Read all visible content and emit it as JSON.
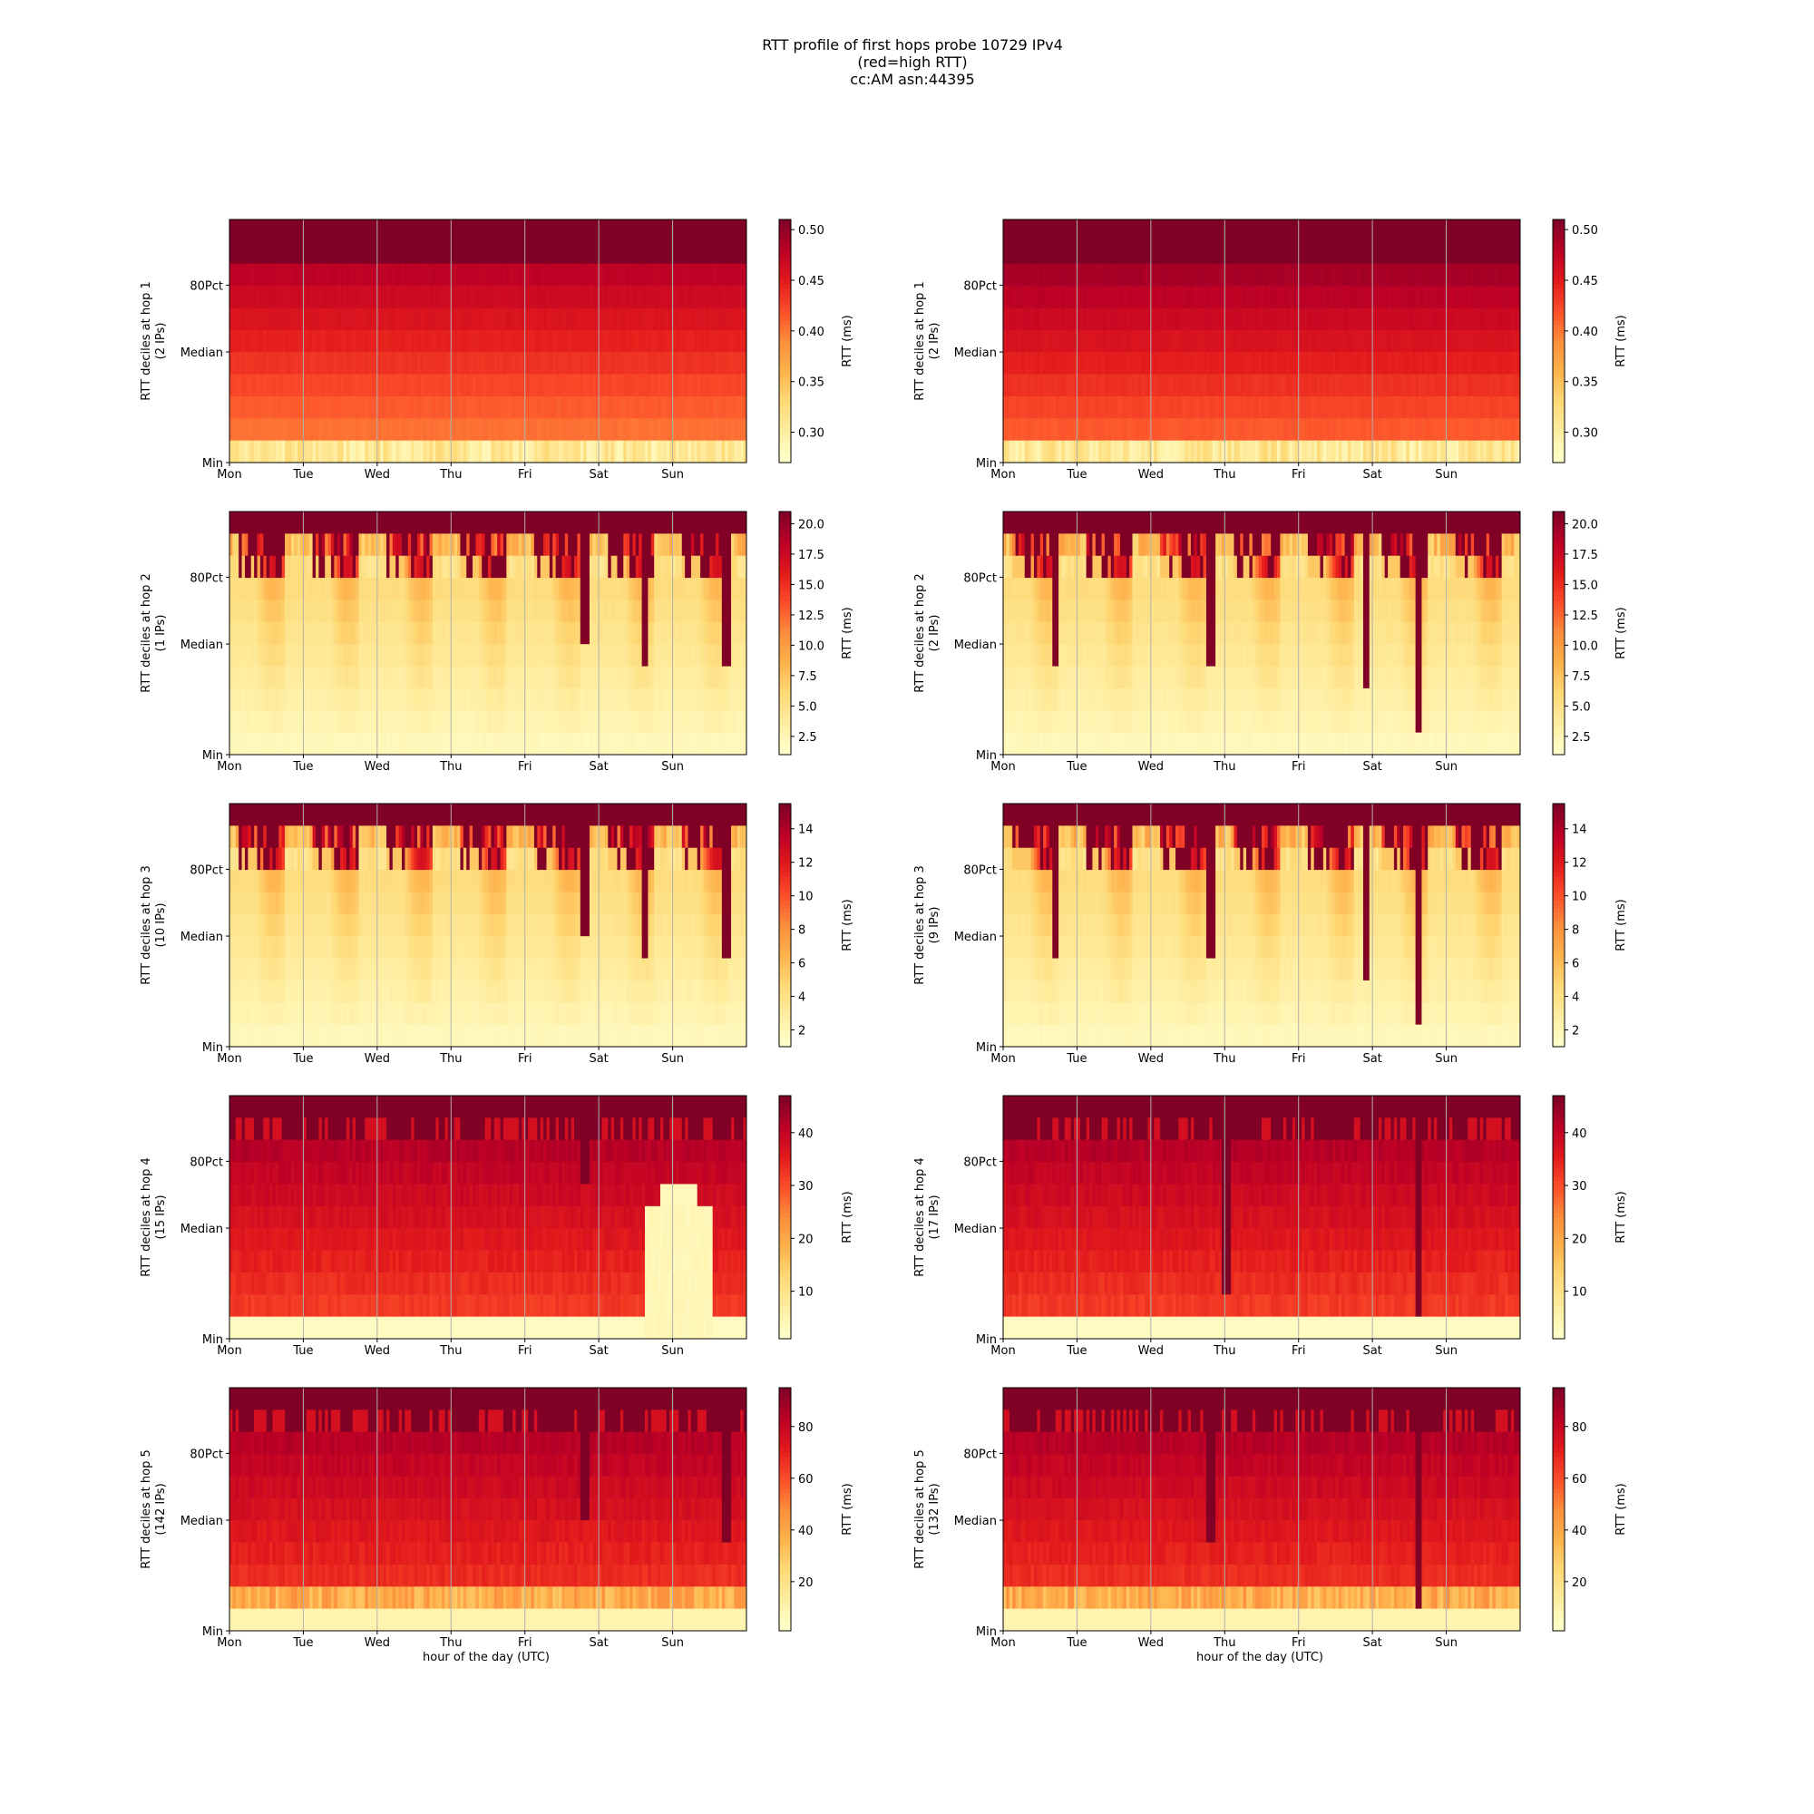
{
  "figure": {
    "title_lines": [
      "RTT profile of first hops probe 10729 IPv4",
      "(red=high RTT)",
      "cc:AM asn:44395"
    ],
    "xlabel": "hour of the day (UTC)",
    "colorbar_label": "RTT (ms)",
    "y_tick_labels": [
      "Min",
      "Median",
      "80Pct"
    ],
    "day_labels": [
      "Mon",
      "Tue",
      "Wed",
      "Thu",
      "Fri",
      "Sat",
      "Sun"
    ],
    "colormap": [
      "#ffffcc",
      "#ffeda0",
      "#fed976",
      "#feb24c",
      "#fd8d3c",
      "#fc4e2a",
      "#e31a1c",
      "#bd0026",
      "#800026"
    ]
  },
  "chart_data": [
    {
      "type": "heatmap",
      "ylabel": "RTT deciles at hop 1",
      "ip_label": "(2 IPs)",
      "vmin": 0.27,
      "vmax": 0.51,
      "cbar_ticks": [
        "0.30",
        "0.35",
        "0.40",
        "0.45",
        "0.50"
      ],
      "profile": "flat-low",
      "spikes": [],
      "anomalies": []
    },
    {
      "type": "heatmap",
      "ylabel": "RTT deciles at hop 1",
      "ip_label": "(2 IPs)",
      "vmin": 0.27,
      "vmax": 0.51,
      "cbar_ticks": [
        "0.30",
        "0.35",
        "0.40",
        "0.45",
        "0.50"
      ],
      "profile": "flat-high",
      "spikes": [],
      "anomalies": []
    },
    {
      "type": "heatmap",
      "ylabel": "RTT deciles at hop 2",
      "ip_label": "(1 IPs)",
      "vmin": 1,
      "vmax": 21,
      "cbar_ticks": [
        "2.5",
        "5.0",
        "7.5",
        "10.0",
        "12.5",
        "15.0",
        "17.5",
        "20.0"
      ],
      "profile": "diurnal",
      "spikes": [
        [
          4.8,
          5
        ],
        [
          5.6,
          4
        ],
        [
          6.7,
          4
        ]
      ],
      "anomalies": []
    },
    {
      "type": "heatmap",
      "ylabel": "RTT deciles at hop 2",
      "ip_label": "(2 IPs)",
      "vmin": 1,
      "vmax": 21,
      "cbar_ticks": [
        "2.5",
        "5.0",
        "7.5",
        "10.0",
        "12.5",
        "15.0",
        "17.5",
        "20.0"
      ],
      "profile": "diurnal",
      "spikes": [
        [
          0.7,
          4
        ],
        [
          2.8,
          4
        ],
        [
          4.9,
          3
        ],
        [
          5.6,
          1
        ]
      ],
      "anomalies": []
    },
    {
      "type": "heatmap",
      "ylabel": "RTT deciles at hop 3",
      "ip_label": "(10 IPs)",
      "vmin": 1,
      "vmax": 15.5,
      "cbar_ticks": [
        "2",
        "4",
        "6",
        "8",
        "10",
        "12",
        "14"
      ],
      "profile": "diurnal",
      "spikes": [
        [
          4.8,
          5
        ],
        [
          5.6,
          4
        ],
        [
          6.7,
          4
        ]
      ],
      "anomalies": []
    },
    {
      "type": "heatmap",
      "ylabel": "RTT deciles at hop 3",
      "ip_label": "(9 IPs)",
      "vmin": 1,
      "vmax": 15.5,
      "cbar_ticks": [
        "2",
        "4",
        "6",
        "8",
        "10",
        "12",
        "14"
      ],
      "profile": "diurnal",
      "spikes": [
        [
          0.7,
          4
        ],
        [
          2.8,
          4
        ],
        [
          4.9,
          3
        ],
        [
          5.6,
          1
        ]
      ],
      "anomalies": []
    },
    {
      "type": "heatmap",
      "ylabel": "RTT deciles at hop 4",
      "ip_label": "(15 IPs)",
      "vmin": 1,
      "vmax": 47,
      "cbar_ticks": [
        "10",
        "20",
        "30",
        "40"
      ],
      "profile": "mid-red",
      "spikes": [
        [
          4.8,
          7
        ]
      ],
      "anomalies": [
        {
          "x0": 5.6,
          "x1": 6.5,
          "row_to": 5,
          "peak_row": 6
        }
      ]
    },
    {
      "type": "heatmap",
      "ylabel": "RTT deciles at hop 4",
      "ip_label": "(17 IPs)",
      "vmin": 1,
      "vmax": 47,
      "cbar_ticks": [
        "10",
        "20",
        "30",
        "40"
      ],
      "profile": "mid-red",
      "spikes": [
        [
          5.6,
          1
        ],
        [
          3.0,
          2
        ]
      ],
      "anomalies": []
    },
    {
      "type": "heatmap",
      "ylabel": "RTT deciles at hop 5",
      "ip_label": "(142 IPs)",
      "vmin": 1,
      "vmax": 95,
      "cbar_ticks": [
        "20",
        "40",
        "60",
        "80"
      ],
      "profile": "mid-red-band",
      "spikes": [
        [
          4.8,
          5
        ],
        [
          6.7,
          4
        ]
      ],
      "anomalies": []
    },
    {
      "type": "heatmap",
      "ylabel": "RTT deciles at hop 5",
      "ip_label": "(132 IPs)",
      "vmin": 1,
      "vmax": 95,
      "cbar_ticks": [
        "20",
        "40",
        "60",
        "80"
      ],
      "profile": "mid-red-band",
      "spikes": [
        [
          5.6,
          1
        ],
        [
          2.8,
          4
        ]
      ],
      "anomalies": []
    }
  ]
}
